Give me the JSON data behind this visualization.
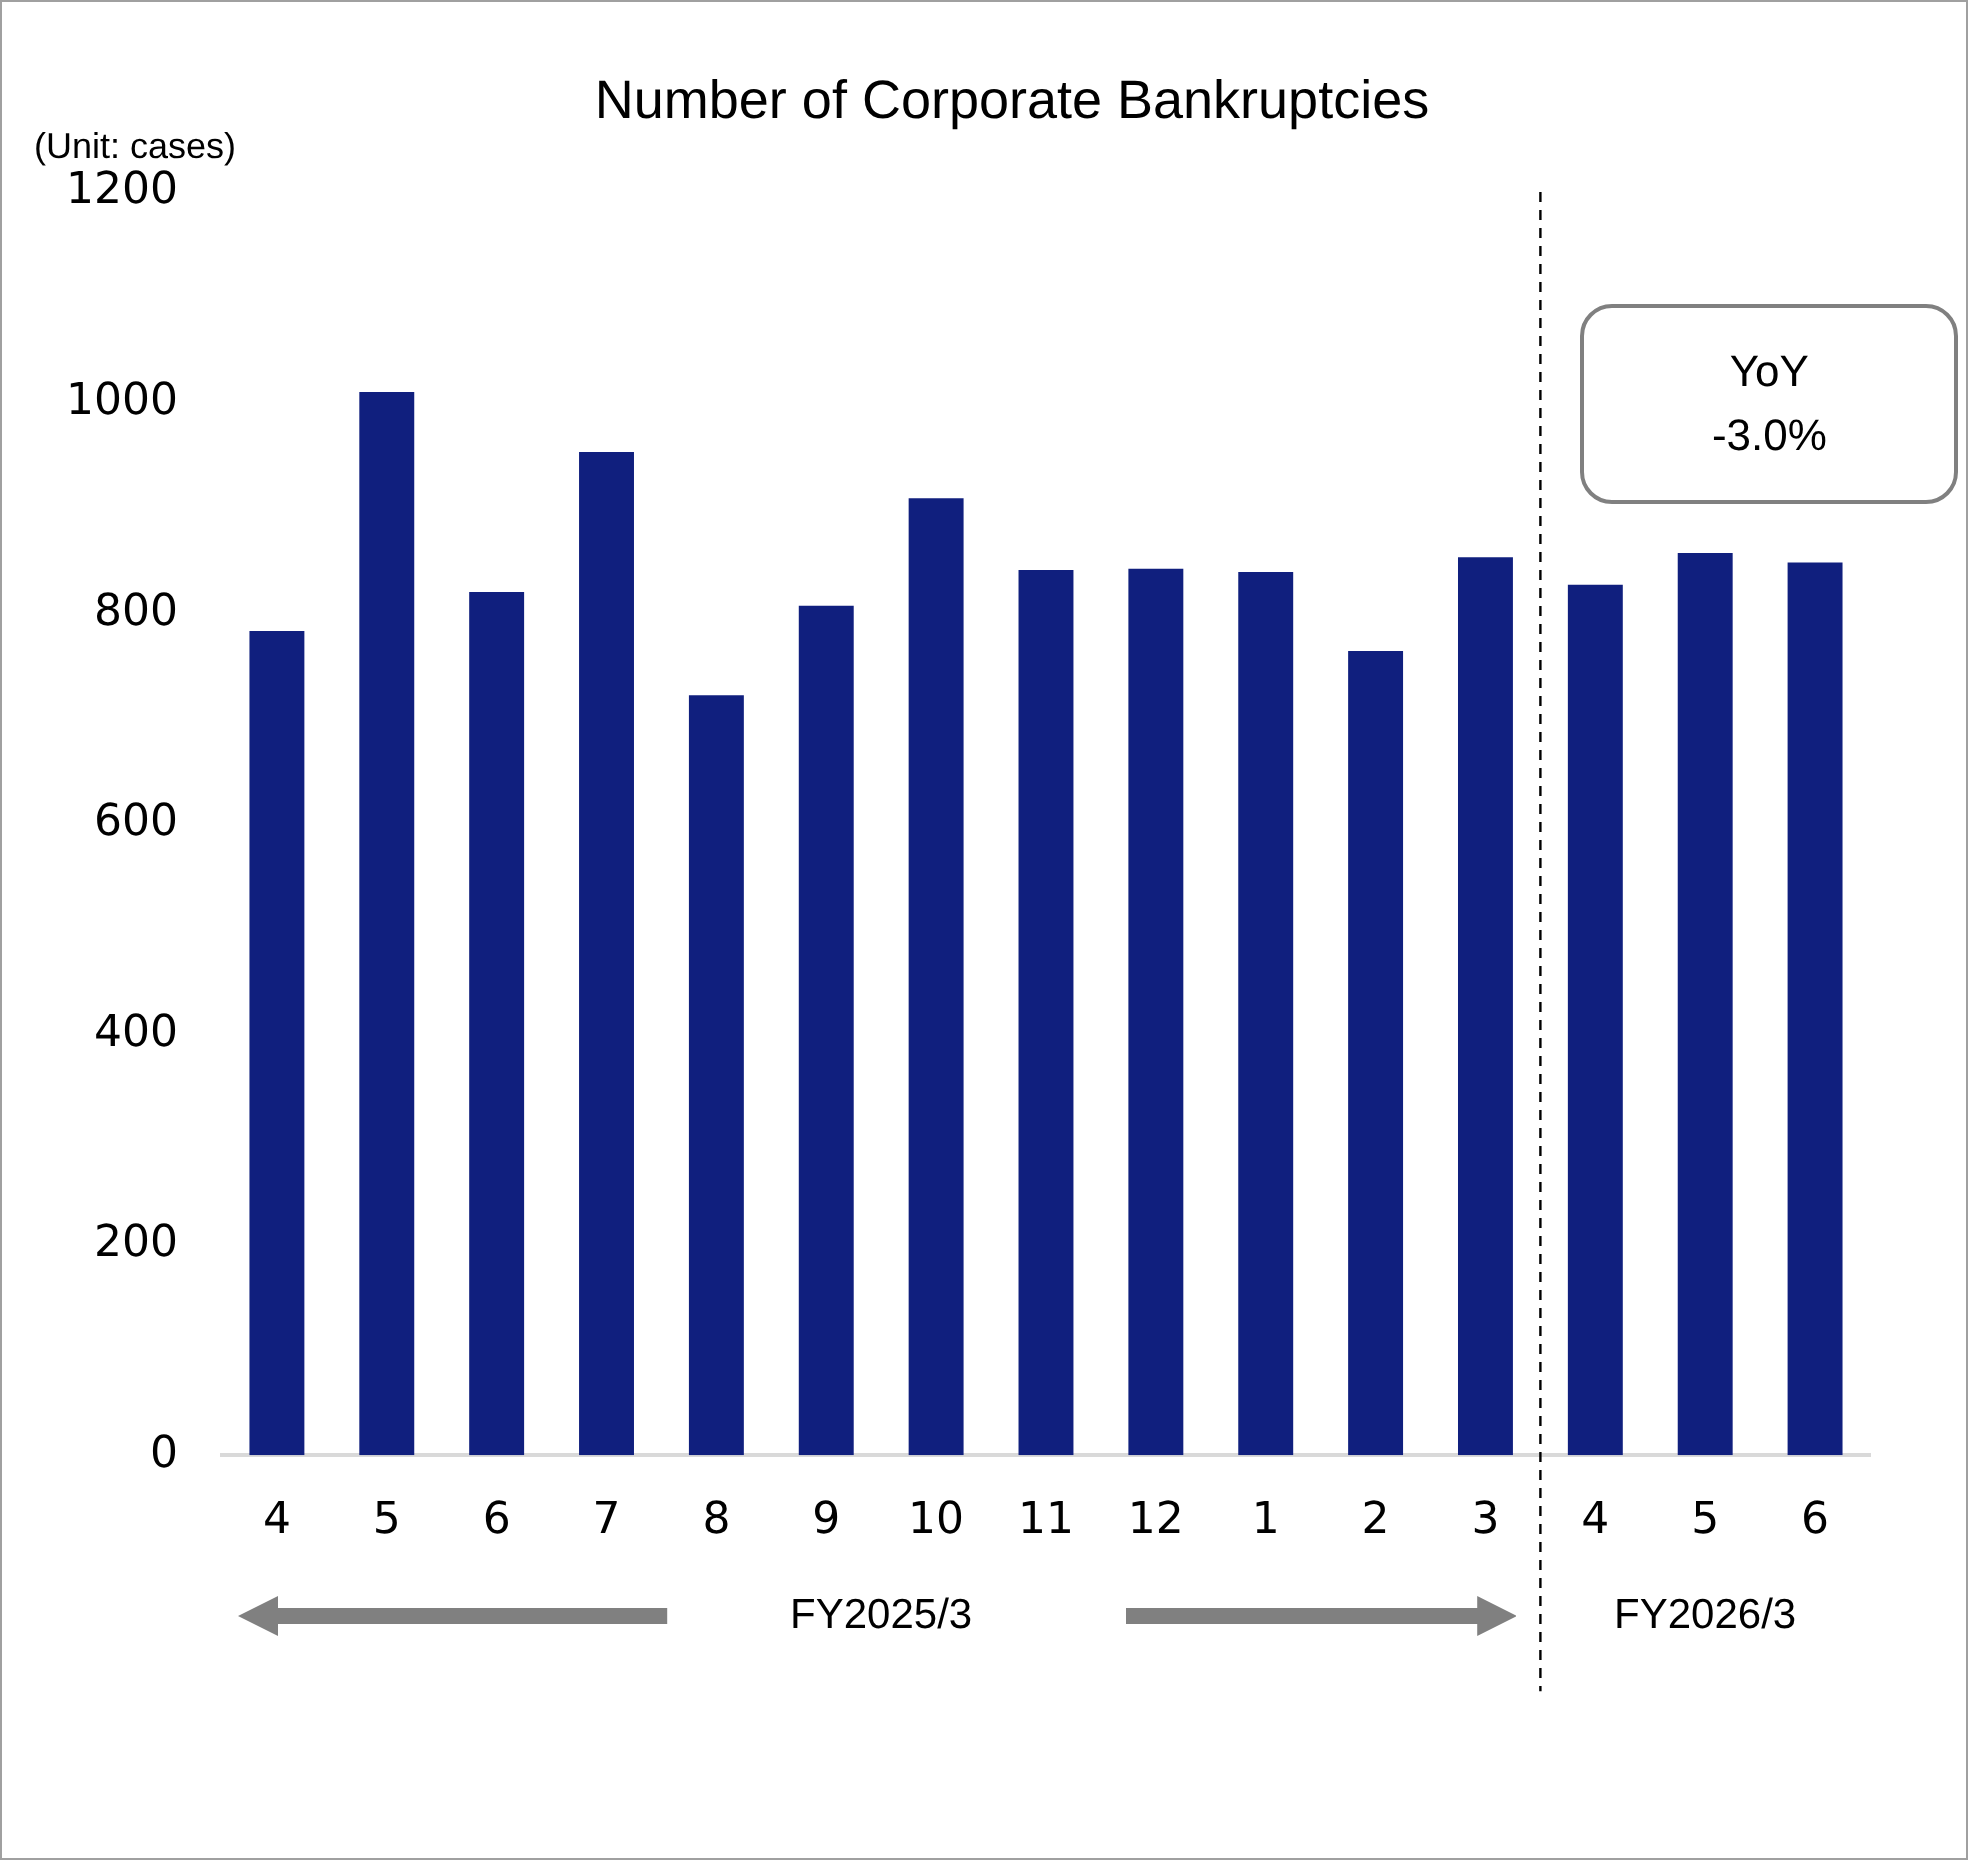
{
  "chart_data": {
    "type": "bar",
    "title": "Number of Corporate Bankruptcies",
    "categories": [
      "4",
      "5",
      "6",
      "7",
      "8",
      "9",
      "10",
      "11",
      "12",
      "1",
      "2",
      "3",
      "4",
      "5",
      "6"
    ],
    "values": [
      783,
      1010,
      820,
      953,
      722,
      807,
      909,
      841,
      842,
      839,
      764,
      853,
      827,
      857,
      848
    ],
    "color": "#101f7e",
    "ylim": [
      0,
      1200
    ],
    "yticks": [
      0,
      200,
      400,
      600,
      800,
      1000,
      1200
    ],
    "annotations": [
      "(Unit: cases)",
      "YoY\n-3.0%",
      "FY2025/3",
      "FY2026/3"
    ]
  }
}
